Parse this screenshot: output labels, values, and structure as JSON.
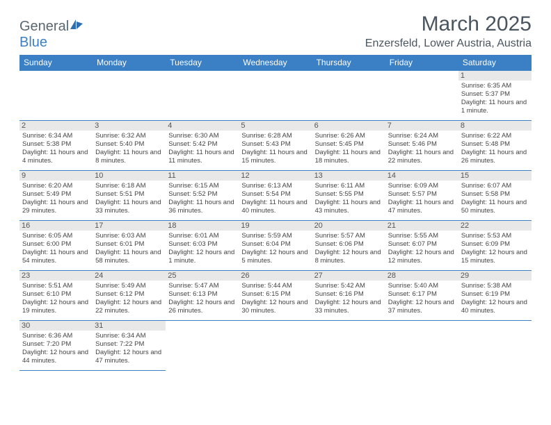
{
  "logo": {
    "text1": "General",
    "text2": "Blue"
  },
  "title": "March 2025",
  "location": "Enzersfeld, Lower Austria, Austria",
  "colors": {
    "header_bg": "#3b7fc4",
    "header_fg": "#ffffff",
    "border": "#3b7fc4",
    "daynum_bg": "#e8e8e8",
    "text": "#4a5560"
  },
  "weekdays": [
    "Sunday",
    "Monday",
    "Tuesday",
    "Wednesday",
    "Thursday",
    "Friday",
    "Saturday"
  ],
  "weeks": [
    [
      null,
      null,
      null,
      null,
      null,
      null,
      {
        "n": "1",
        "sr": "Sunrise: 6:35 AM",
        "ss": "Sunset: 5:37 PM",
        "dl": "Daylight: 11 hours and 1 minute."
      }
    ],
    [
      {
        "n": "2",
        "sr": "Sunrise: 6:34 AM",
        "ss": "Sunset: 5:38 PM",
        "dl": "Daylight: 11 hours and 4 minutes."
      },
      {
        "n": "3",
        "sr": "Sunrise: 6:32 AM",
        "ss": "Sunset: 5:40 PM",
        "dl": "Daylight: 11 hours and 8 minutes."
      },
      {
        "n": "4",
        "sr": "Sunrise: 6:30 AM",
        "ss": "Sunset: 5:42 PM",
        "dl": "Daylight: 11 hours and 11 minutes."
      },
      {
        "n": "5",
        "sr": "Sunrise: 6:28 AM",
        "ss": "Sunset: 5:43 PM",
        "dl": "Daylight: 11 hours and 15 minutes."
      },
      {
        "n": "6",
        "sr": "Sunrise: 6:26 AM",
        "ss": "Sunset: 5:45 PM",
        "dl": "Daylight: 11 hours and 18 minutes."
      },
      {
        "n": "7",
        "sr": "Sunrise: 6:24 AM",
        "ss": "Sunset: 5:46 PM",
        "dl": "Daylight: 11 hours and 22 minutes."
      },
      {
        "n": "8",
        "sr": "Sunrise: 6:22 AM",
        "ss": "Sunset: 5:48 PM",
        "dl": "Daylight: 11 hours and 26 minutes."
      }
    ],
    [
      {
        "n": "9",
        "sr": "Sunrise: 6:20 AM",
        "ss": "Sunset: 5:49 PM",
        "dl": "Daylight: 11 hours and 29 minutes."
      },
      {
        "n": "10",
        "sr": "Sunrise: 6:18 AM",
        "ss": "Sunset: 5:51 PM",
        "dl": "Daylight: 11 hours and 33 minutes."
      },
      {
        "n": "11",
        "sr": "Sunrise: 6:15 AM",
        "ss": "Sunset: 5:52 PM",
        "dl": "Daylight: 11 hours and 36 minutes."
      },
      {
        "n": "12",
        "sr": "Sunrise: 6:13 AM",
        "ss": "Sunset: 5:54 PM",
        "dl": "Daylight: 11 hours and 40 minutes."
      },
      {
        "n": "13",
        "sr": "Sunrise: 6:11 AM",
        "ss": "Sunset: 5:55 PM",
        "dl": "Daylight: 11 hours and 43 minutes."
      },
      {
        "n": "14",
        "sr": "Sunrise: 6:09 AM",
        "ss": "Sunset: 5:57 PM",
        "dl": "Daylight: 11 hours and 47 minutes."
      },
      {
        "n": "15",
        "sr": "Sunrise: 6:07 AM",
        "ss": "Sunset: 5:58 PM",
        "dl": "Daylight: 11 hours and 50 minutes."
      }
    ],
    [
      {
        "n": "16",
        "sr": "Sunrise: 6:05 AM",
        "ss": "Sunset: 6:00 PM",
        "dl": "Daylight: 11 hours and 54 minutes."
      },
      {
        "n": "17",
        "sr": "Sunrise: 6:03 AM",
        "ss": "Sunset: 6:01 PM",
        "dl": "Daylight: 11 hours and 58 minutes."
      },
      {
        "n": "18",
        "sr": "Sunrise: 6:01 AM",
        "ss": "Sunset: 6:03 PM",
        "dl": "Daylight: 12 hours and 1 minute."
      },
      {
        "n": "19",
        "sr": "Sunrise: 5:59 AM",
        "ss": "Sunset: 6:04 PM",
        "dl": "Daylight: 12 hours and 5 minutes."
      },
      {
        "n": "20",
        "sr": "Sunrise: 5:57 AM",
        "ss": "Sunset: 6:06 PM",
        "dl": "Daylight: 12 hours and 8 minutes."
      },
      {
        "n": "21",
        "sr": "Sunrise: 5:55 AM",
        "ss": "Sunset: 6:07 PM",
        "dl": "Daylight: 12 hours and 12 minutes."
      },
      {
        "n": "22",
        "sr": "Sunrise: 5:53 AM",
        "ss": "Sunset: 6:09 PM",
        "dl": "Daylight: 12 hours and 15 minutes."
      }
    ],
    [
      {
        "n": "23",
        "sr": "Sunrise: 5:51 AM",
        "ss": "Sunset: 6:10 PM",
        "dl": "Daylight: 12 hours and 19 minutes."
      },
      {
        "n": "24",
        "sr": "Sunrise: 5:49 AM",
        "ss": "Sunset: 6:12 PM",
        "dl": "Daylight: 12 hours and 22 minutes."
      },
      {
        "n": "25",
        "sr": "Sunrise: 5:47 AM",
        "ss": "Sunset: 6:13 PM",
        "dl": "Daylight: 12 hours and 26 minutes."
      },
      {
        "n": "26",
        "sr": "Sunrise: 5:44 AM",
        "ss": "Sunset: 6:15 PM",
        "dl": "Daylight: 12 hours and 30 minutes."
      },
      {
        "n": "27",
        "sr": "Sunrise: 5:42 AM",
        "ss": "Sunset: 6:16 PM",
        "dl": "Daylight: 12 hours and 33 minutes."
      },
      {
        "n": "28",
        "sr": "Sunrise: 5:40 AM",
        "ss": "Sunset: 6:17 PM",
        "dl": "Daylight: 12 hours and 37 minutes."
      },
      {
        "n": "29",
        "sr": "Sunrise: 5:38 AM",
        "ss": "Sunset: 6:19 PM",
        "dl": "Daylight: 12 hours and 40 minutes."
      }
    ],
    [
      {
        "n": "30",
        "sr": "Sunrise: 6:36 AM",
        "ss": "Sunset: 7:20 PM",
        "dl": "Daylight: 12 hours and 44 minutes."
      },
      {
        "n": "31",
        "sr": "Sunrise: 6:34 AM",
        "ss": "Sunset: 7:22 PM",
        "dl": "Daylight: 12 hours and 47 minutes."
      },
      null,
      null,
      null,
      null,
      null
    ]
  ]
}
